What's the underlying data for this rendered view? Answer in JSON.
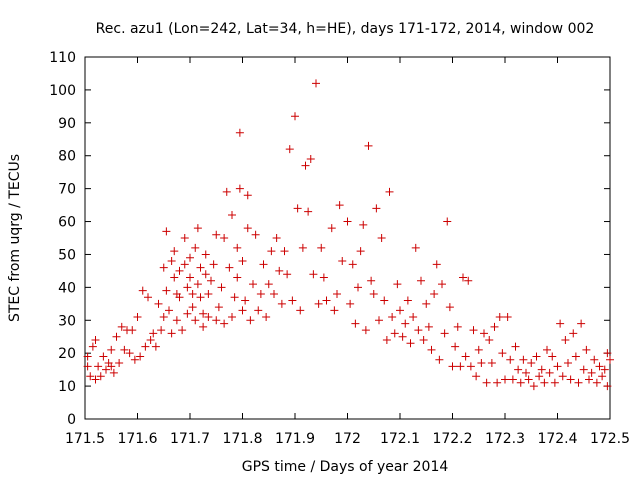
{
  "chart_data": {
    "type": "scatter",
    "title": "Rec. azu1 (Lon=242, Lat=34, h=HE), days 171-172, 2014, window 002",
    "xlabel": "GPS time / Days of year 2014",
    "ylabel": "STEC from uqrg / TECUs",
    "xlim": [
      171.5,
      172.5
    ],
    "ylim": [
      0,
      110
    ],
    "xticks": [
      "171.5",
      "171.6",
      "171.7",
      "171.8",
      "171.9",
      "172",
      "172.1",
      "172.2",
      "172.3",
      "172.4",
      "172.5"
    ],
    "yticks": [
      "0",
      "10",
      "20",
      "30",
      "40",
      "50",
      "60",
      "70",
      "80",
      "90",
      "100",
      "110"
    ],
    "grid": false,
    "legend": "none",
    "marker": "plus",
    "color": "#cc0000",
    "series": [
      {
        "points": [
          [
            171.505,
            16
          ],
          [
            171.505,
            19
          ],
          [
            171.51,
            13
          ],
          [
            171.515,
            22
          ],
          [
            171.52,
            24
          ],
          [
            171.52,
            12
          ],
          [
            171.525,
            16
          ],
          [
            171.53,
            13
          ],
          [
            171.535,
            19
          ],
          [
            171.54,
            15
          ],
          [
            171.545,
            17
          ],
          [
            171.55,
            21
          ],
          [
            171.55,
            16
          ],
          [
            171.555,
            14
          ],
          [
            171.56,
            25
          ],
          [
            171.565,
            17
          ],
          [
            171.57,
            28
          ],
          [
            171.575,
            21
          ],
          [
            171.58,
            27
          ],
          [
            171.585,
            20
          ],
          [
            171.59,
            27
          ],
          [
            171.595,
            18
          ],
          [
            171.6,
            31
          ],
          [
            171.605,
            19
          ],
          [
            171.61,
            39
          ],
          [
            171.615,
            22
          ],
          [
            171.62,
            37
          ],
          [
            171.625,
            24
          ],
          [
            171.63,
            26
          ],
          [
            171.635,
            22
          ],
          [
            171.64,
            35
          ],
          [
            171.645,
            27
          ],
          [
            171.65,
            46
          ],
          [
            171.65,
            31
          ],
          [
            171.655,
            39
          ],
          [
            171.655,
            57
          ],
          [
            171.66,
            33
          ],
          [
            171.665,
            26
          ],
          [
            171.665,
            48
          ],
          [
            171.67,
            51
          ],
          [
            171.67,
            43
          ],
          [
            171.675,
            38
          ],
          [
            171.675,
            30
          ],
          [
            171.68,
            45
          ],
          [
            171.68,
            37
          ],
          [
            171.685,
            27
          ],
          [
            171.69,
            47
          ],
          [
            171.69,
            55
          ],
          [
            171.695,
            32
          ],
          [
            171.695,
            40
          ],
          [
            171.7,
            43
          ],
          [
            171.7,
            49
          ],
          [
            171.705,
            34
          ],
          [
            171.705,
            38
          ],
          [
            171.71,
            30
          ],
          [
            171.71,
            52
          ],
          [
            171.715,
            41
          ],
          [
            171.715,
            58
          ],
          [
            171.72,
            37
          ],
          [
            171.72,
            46
          ],
          [
            171.725,
            32
          ],
          [
            171.725,
            28
          ],
          [
            171.73,
            50
          ],
          [
            171.73,
            44
          ],
          [
            171.735,
            38
          ],
          [
            171.735,
            31
          ],
          [
            171.74,
            42
          ],
          [
            171.745,
            47
          ],
          [
            171.75,
            30
          ],
          [
            171.75,
            56
          ],
          [
            171.755,
            34
          ],
          [
            171.76,
            40
          ],
          [
            171.765,
            29
          ],
          [
            171.765,
            55
          ],
          [
            171.77,
            69
          ],
          [
            171.775,
            46
          ],
          [
            171.78,
            31
          ],
          [
            171.78,
            62
          ],
          [
            171.785,
            37
          ],
          [
            171.79,
            43
          ],
          [
            171.79,
            52
          ],
          [
            171.795,
            87
          ],
          [
            171.795,
            70
          ],
          [
            171.8,
            33
          ],
          [
            171.8,
            48
          ],
          [
            171.805,
            36
          ],
          [
            171.81,
            68
          ],
          [
            171.81,
            58
          ],
          [
            171.815,
            30
          ],
          [
            171.82,
            41
          ],
          [
            171.825,
            56
          ],
          [
            171.83,
            33
          ],
          [
            171.835,
            38
          ],
          [
            171.84,
            47
          ],
          [
            171.845,
            31
          ],
          [
            171.85,
            41
          ],
          [
            171.855,
            51
          ],
          [
            171.86,
            38
          ],
          [
            171.865,
            55
          ],
          [
            171.87,
            45
          ],
          [
            171.875,
            35
          ],
          [
            171.88,
            51
          ],
          [
            171.885,
            44
          ],
          [
            171.89,
            82
          ],
          [
            171.895,
            36
          ],
          [
            171.9,
            92
          ],
          [
            171.905,
            64
          ],
          [
            171.91,
            33
          ],
          [
            171.915,
            52
          ],
          [
            171.92,
            77
          ],
          [
            171.925,
            63
          ],
          [
            171.93,
            79
          ],
          [
            171.935,
            44
          ],
          [
            171.94,
            102
          ],
          [
            171.945,
            35
          ],
          [
            171.95,
            52
          ],
          [
            171.955,
            43
          ],
          [
            171.96,
            36
          ],
          [
            171.97,
            58
          ],
          [
            171.975,
            33
          ],
          [
            171.98,
            38
          ],
          [
            171.985,
            65
          ],
          [
            171.99,
            48
          ],
          [
            172.0,
            60
          ],
          [
            172.005,
            35
          ],
          [
            172.01,
            47
          ],
          [
            172.015,
            29
          ],
          [
            172.02,
            40
          ],
          [
            172.025,
            51
          ],
          [
            172.03,
            59
          ],
          [
            172.035,
            27
          ],
          [
            172.04,
            83
          ],
          [
            172.045,
            42
          ],
          [
            172.05,
            38
          ],
          [
            172.055,
            64
          ],
          [
            172.06,
            30
          ],
          [
            172.065,
            55
          ],
          [
            172.07,
            36
          ],
          [
            172.075,
            24
          ],
          [
            172.08,
            69
          ],
          [
            172.085,
            31
          ],
          [
            172.09,
            26
          ],
          [
            172.095,
            41
          ],
          [
            172.1,
            33
          ],
          [
            172.105,
            25
          ],
          [
            172.11,
            29
          ],
          [
            172.115,
            36
          ],
          [
            172.12,
            23
          ],
          [
            172.125,
            31
          ],
          [
            172.13,
            52
          ],
          [
            172.135,
            27
          ],
          [
            172.14,
            42
          ],
          [
            172.145,
            24
          ],
          [
            172.15,
            35
          ],
          [
            172.155,
            28
          ],
          [
            172.16,
            21
          ],
          [
            172.165,
            38
          ],
          [
            172.17,
            47
          ],
          [
            172.175,
            18
          ],
          [
            172.18,
            41
          ],
          [
            172.185,
            26
          ],
          [
            172.19,
            60
          ],
          [
            172.195,
            34
          ],
          [
            172.2,
            16
          ],
          [
            172.205,
            22
          ],
          [
            172.21,
            28
          ],
          [
            172.215,
            16
          ],
          [
            172.22,
            43
          ],
          [
            172.225,
            19
          ],
          [
            172.23,
            42
          ],
          [
            172.235,
            16
          ],
          [
            172.24,
            27
          ],
          [
            172.245,
            13
          ],
          [
            172.25,
            21
          ],
          [
            172.255,
            17
          ],
          [
            172.26,
            26
          ],
          [
            172.265,
            11
          ],
          [
            172.27,
            24
          ],
          [
            172.275,
            17
          ],
          [
            172.28,
            28
          ],
          [
            172.285,
            11
          ],
          [
            172.29,
            31
          ],
          [
            172.295,
            20
          ],
          [
            172.3,
            12
          ],
          [
            172.305,
            31
          ],
          [
            172.31,
            18
          ],
          [
            172.315,
            12
          ],
          [
            172.32,
            22
          ],
          [
            172.325,
            15
          ],
          [
            172.33,
            11
          ],
          [
            172.335,
            18
          ],
          [
            172.34,
            14
          ],
          [
            172.345,
            12
          ],
          [
            172.35,
            17
          ],
          [
            172.355,
            10
          ],
          [
            172.36,
            19
          ],
          [
            172.365,
            13
          ],
          [
            172.37,
            15
          ],
          [
            172.375,
            11
          ],
          [
            172.38,
            21
          ],
          [
            172.385,
            14
          ],
          [
            172.39,
            19
          ],
          [
            172.395,
            11
          ],
          [
            172.4,
            16
          ],
          [
            172.405,
            29
          ],
          [
            172.41,
            13
          ],
          [
            172.415,
            24
          ],
          [
            172.42,
            17
          ],
          [
            172.425,
            12
          ],
          [
            172.43,
            26
          ],
          [
            172.435,
            19
          ],
          [
            172.44,
            11
          ],
          [
            172.445,
            29
          ],
          [
            172.45,
            15
          ],
          [
            172.455,
            21
          ],
          [
            172.46,
            12
          ],
          [
            172.465,
            14
          ],
          [
            172.47,
            18
          ],
          [
            172.475,
            11
          ],
          [
            172.48,
            16
          ],
          [
            172.485,
            13
          ],
          [
            172.49,
            15
          ],
          [
            172.495,
            10
          ],
          [
            172.495,
            20
          ],
          [
            172.5,
            18
          ]
        ]
      }
    ]
  }
}
